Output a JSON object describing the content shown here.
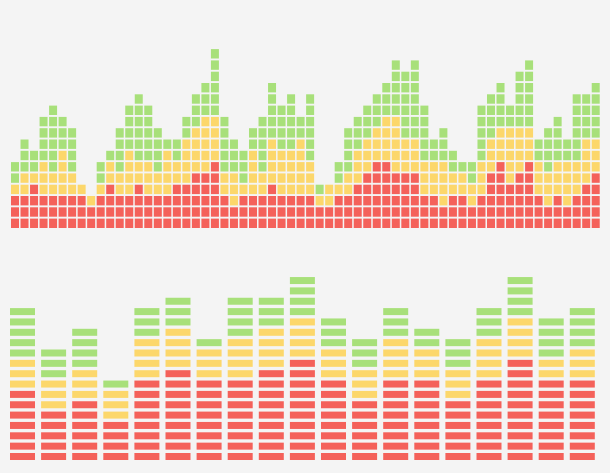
{
  "palette": {
    "red": "#f4615a",
    "yellow": "#fcd76b",
    "green": "#a8e07a",
    "background": "#f4f4f4"
  },
  "equalizer_top": {
    "color_bands": [
      "red",
      "yellow",
      "green"
    ],
    "columns": [
      [
        3,
        1,
        2
      ],
      [
        3,
        2,
        3
      ],
      [
        4,
        1,
        2
      ],
      [
        3,
        3,
        4
      ],
      [
        3,
        2,
        6
      ],
      [
        3,
        4,
        3
      ],
      [
        3,
        2,
        4
      ],
      [
        3,
        1,
        0
      ],
      [
        2,
        1,
        0
      ],
      [
        3,
        1,
        2
      ],
      [
        4,
        2,
        1
      ],
      [
        3,
        2,
        4
      ],
      [
        3,
        4,
        4
      ],
      [
        4,
        2,
        6
      ],
      [
        3,
        3,
        5
      ],
      [
        3,
        2,
        4
      ],
      [
        3,
        4,
        1
      ],
      [
        4,
        2,
        2
      ],
      [
        4,
        4,
        2
      ],
      [
        5,
        4,
        3
      ],
      [
        5,
        5,
        3
      ],
      [
        6,
        4,
        6
      ],
      [
        3,
        2,
        5
      ],
      [
        2,
        3,
        3
      ],
      [
        3,
        1,
        3
      ],
      [
        3,
        4,
        2
      ],
      [
        3,
        2,
        5
      ],
      [
        4,
        4,
        5
      ],
      [
        3,
        4,
        4
      ],
      [
        3,
        4,
        5
      ],
      [
        3,
        5,
        2
      ],
      [
        3,
        3,
        6
      ],
      [
        2,
        1,
        1
      ],
      [
        2,
        2,
        0
      ],
      [
        3,
        1,
        2
      ],
      [
        3,
        2,
        4
      ],
      [
        4,
        3,
        3
      ],
      [
        5,
        3,
        3
      ],
      [
        6,
        3,
        3
      ],
      [
        6,
        4,
        3
      ],
      [
        5,
        5,
        5
      ],
      [
        5,
        3,
        6
      ],
      [
        5,
        3,
        7
      ],
      [
        3,
        3,
        5
      ],
      [
        3,
        3,
        2
      ],
      [
        2,
        4,
        3
      ],
      [
        3,
        2,
        2
      ],
      [
        3,
        2,
        1
      ],
      [
        2,
        2,
        2
      ],
      [
        3,
        3,
        5
      ],
      [
        5,
        3,
        4
      ],
      [
        6,
        3,
        4
      ],
      [
        4,
        5,
        2
      ],
      [
        5,
        4,
        5
      ],
      [
        6,
        3,
        6
      ],
      [
        3,
        3,
        2
      ],
      [
        2,
        3,
        4
      ],
      [
        3,
        3,
        4
      ],
      [
        2,
        4,
        2
      ],
      [
        3,
        3,
        6
      ],
      [
        4,
        4,
        4
      ],
      [
        5,
        3,
        5
      ]
    ]
  },
  "equalizer_bottom": {
    "color_bands": [
      "red",
      "yellow",
      "green"
    ],
    "columns": [
      [
        7,
        3,
        5
      ],
      [
        5,
        3,
        3
      ],
      [
        6,
        3,
        4
      ],
      [
        4,
        3,
        1
      ],
      [
        8,
        4,
        3
      ],
      [
        9,
        4,
        3
      ],
      [
        8,
        3,
        1
      ],
      [
        8,
        4,
        4
      ],
      [
        9,
        4,
        3
      ],
      [
        10,
        4,
        4
      ],
      [
        8,
        3,
        3
      ],
      [
        6,
        3,
        3
      ],
      [
        8,
        4,
        3
      ],
      [
        8,
        3,
        2
      ],
      [
        6,
        3,
        3
      ],
      [
        8,
        4,
        3
      ],
      [
        10,
        4,
        4
      ],
      [
        8,
        2,
        4
      ],
      [
        8,
        3,
        4
      ]
    ]
  }
}
